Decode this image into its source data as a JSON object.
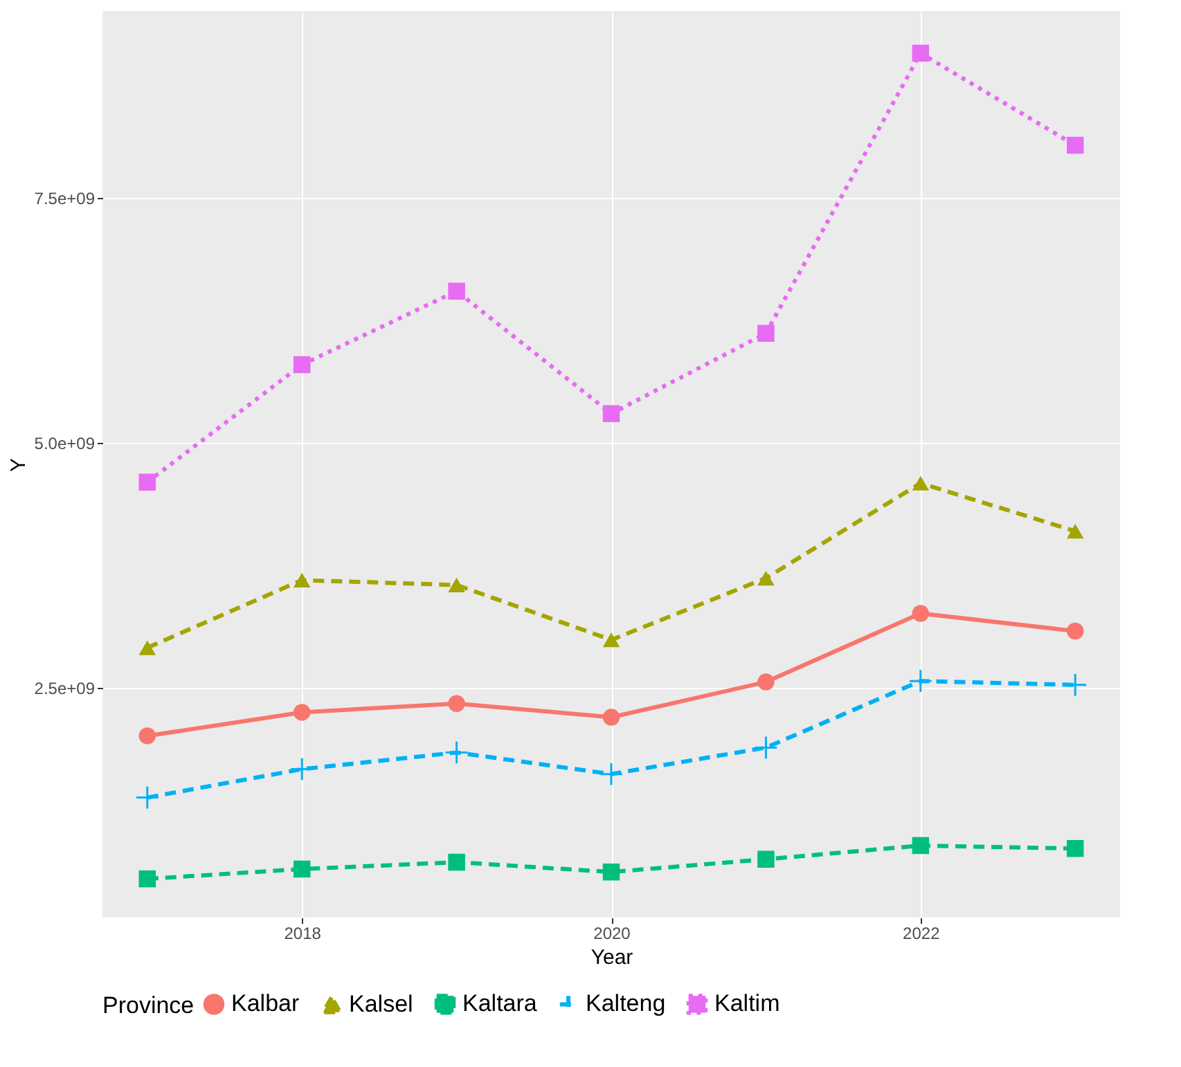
{
  "chart_data": {
    "type": "line",
    "xlabel": "Year",
    "ylabel": "Y",
    "legend_title": "Province",
    "legend": "bottom",
    "grid": true,
    "x": [
      2017,
      2018,
      2019,
      2020,
      2021,
      2022,
      2023
    ],
    "xlim": [
      2016.71,
      2023.29
    ],
    "xticks": [
      2018,
      2020,
      2022
    ],
    "ylim": [
      155000000.0,
      9410000000.0
    ],
    "yticks": [
      {
        "value": 2500000000,
        "label": "2.5e+09"
      },
      {
        "value": 5000000000,
        "label": "5.0e+09"
      },
      {
        "value": 7500000000,
        "label": "7.5e+09"
      }
    ],
    "series": [
      {
        "name": "Kalbar",
        "color": "#f8766d",
        "marker": "circle",
        "line_style": "solid",
        "values": [
          2010000000.0,
          2250000000.0,
          2340000000.0,
          2200000000.0,
          2560000000.0,
          3260000000.0,
          3080000000.0
        ]
      },
      {
        "name": "Kalsel",
        "color": "#a3a500",
        "marker": "triangle",
        "line_style": "dashed",
        "values": [
          2910000000.0,
          3600000000.0,
          3550000000.0,
          2990000000.0,
          3620000000.0,
          4590000000.0,
          4100000000.0
        ]
      },
      {
        "name": "Kaltara",
        "color": "#00bf7d",
        "marker": "square",
        "line_style": "dashed",
        "values": [
          550000000.0,
          650000000.0,
          720000000.0,
          620000000.0,
          750000000.0,
          890000000.0,
          860000000.0
        ]
      },
      {
        "name": "Kalteng",
        "color": "#00b0f6",
        "marker": "cross",
        "line_style": "dashed",
        "values": [
          1380000000.0,
          1670000000.0,
          1840000000.0,
          1620000000.0,
          1890000000.0,
          2570000000.0,
          2530000000.0
        ]
      },
      {
        "name": "Kaltim",
        "color": "#e76bf3",
        "marker": "square",
        "line_style": "dotted",
        "values": [
          4600000000.0,
          5800000000.0,
          6550000000.0,
          5300000000.0,
          6120000000.0,
          8980000000.0,
          8040000000.0
        ]
      }
    ]
  }
}
